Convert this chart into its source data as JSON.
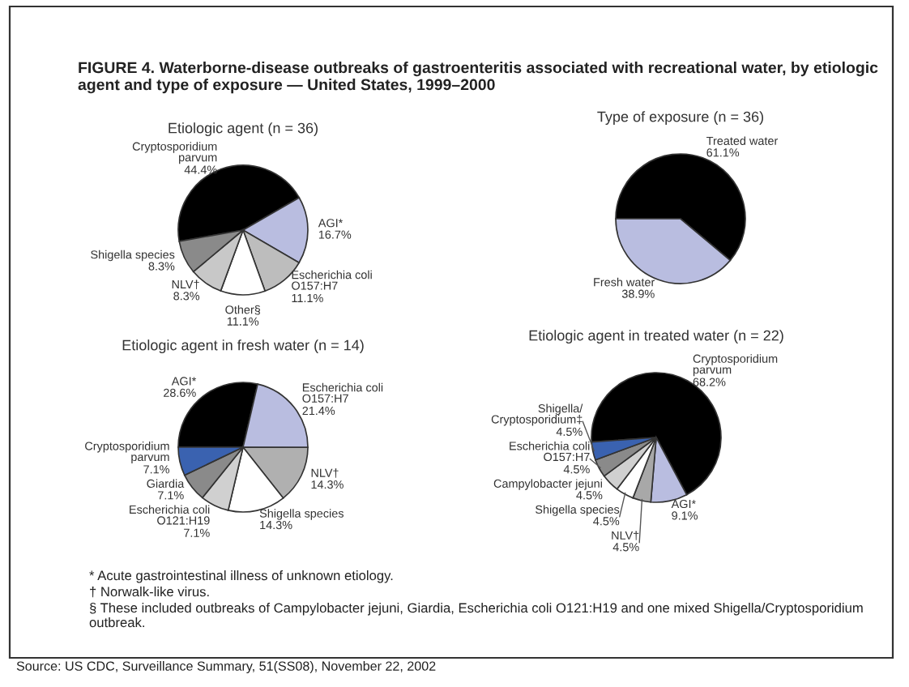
{
  "chart_data": [
    {
      "type": "pie",
      "title": "Etiologic agent (n = 36)",
      "categories": [
        "Cryptosporidium\nparvum",
        "AGI*",
        "Escherichia coli\nO157:H7",
        "Other§",
        "NLV†",
        "Shigella species"
      ],
      "values": [
        44.4,
        16.7,
        11.1,
        11.1,
        8.3,
        8.3
      ],
      "value_labels": [
        "44.4%",
        "16.7%",
        "11.1%",
        "11.1%",
        "8.3%",
        "8.3%"
      ],
      "colors": [
        "#000000",
        "#b9bde0",
        "#bdbdbd",
        "#ffffff",
        "#c8c8c8",
        "#8a8a8a"
      ],
      "annotations": [
        "FIGURE 4. Waterborne-disease outbreaks of gastroenteritis associated with recreational water, by etiologic agent and type of exposure — United States, 1999–2000"
      ]
    },
    {
      "type": "pie",
      "title": "Type of exposure (n = 36)",
      "categories": [
        "Treated water",
        "Fresh water"
      ],
      "values": [
        61.1,
        38.9
      ],
      "value_labels": [
        "61.1%",
        "38.9%"
      ],
      "colors": [
        "#000000",
        "#b9bde0"
      ]
    },
    {
      "type": "pie",
      "title": "Etiologic agent in fresh water (n = 14)",
      "categories": [
        "AGI*",
        "Escherichia coli\nO157:H7",
        "NLV†",
        "Shigella species",
        "Escherichia coli\nO121:H19",
        "Giardia",
        "Cryptosporidium\nparvum"
      ],
      "values": [
        28.6,
        21.4,
        14.3,
        14.3,
        7.1,
        7.1,
        7.1
      ],
      "value_labels": [
        "28.6%",
        "21.4%",
        "14.3%",
        "14.3%",
        "7.1%",
        "7.1%",
        "7.1%"
      ],
      "colors": [
        "#000000",
        "#b9bde0",
        "#b0b0b0",
        "#ffffff",
        "#d0d0d0",
        "#8a8a8a",
        "#3a62b0"
      ]
    },
    {
      "type": "pie",
      "title": "Etiologic agent in treated water (n = 22)",
      "categories": [
        "Cryptosporidium\nparvum",
        "AGI*",
        "NLV†",
        "Shigella species",
        "Campylobacter jejuni",
        "Escherichia coli\nO157:H7",
        "Shigella/\nCryptosporidium‡"
      ],
      "values": [
        68.2,
        9.1,
        4.5,
        4.5,
        4.5,
        4.5,
        4.5
      ],
      "value_labels": [
        "68.2%",
        "9.1%",
        "4.5%",
        "4.5%",
        "4.5%",
        "4.5%",
        "4.5%"
      ],
      "colors": [
        "#000000",
        "#b9bde0",
        "#a8a8a8",
        "#ffffff",
        "#d0d0d0",
        "#8a8a8a",
        "#3a62b0"
      ],
      "annotations": [
        "* Acute gastrointestinal illness of unknown etiology.",
        "† Norwalk-like virus.",
        "§ These included outbreaks of Campylobacter jejuni, Giardia, Escherichia coli O121:H19 and one mixed Shigella/Cryptosporidium outbreak.",
        "Source: US CDC, Surveillance Summary, 51(SS08), November 22, 2002"
      ]
    }
  ]
}
